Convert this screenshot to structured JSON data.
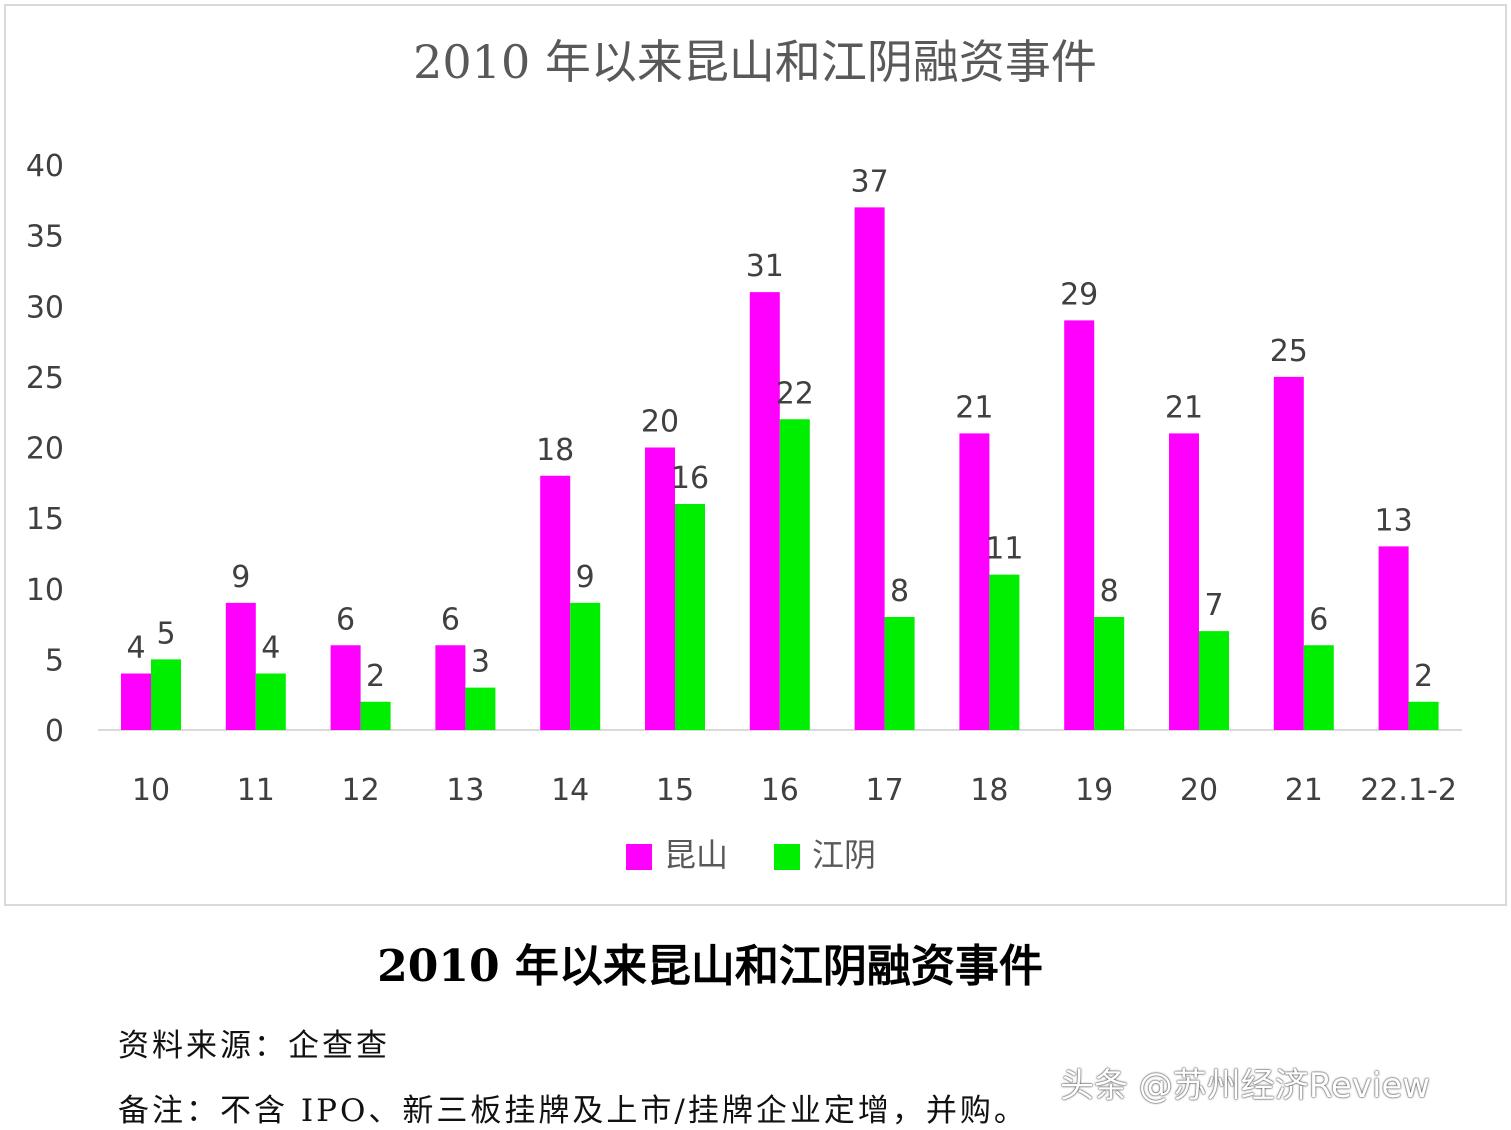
{
  "chart_data": {
    "type": "bar",
    "title": "2010 年以来昆山和江阴融资事件",
    "categories": [
      "10",
      "11",
      "12",
      "13",
      "14",
      "15",
      "16",
      "17",
      "18",
      "19",
      "20",
      "21",
      "22.1-2"
    ],
    "series": [
      {
        "name": "昆山",
        "color": "#ff00ff",
        "values": [
          4,
          9,
          6,
          6,
          18,
          20,
          31,
          37,
          21,
          29,
          21,
          25,
          13
        ]
      },
      {
        "name": "江阴",
        "color": "#00ee00",
        "values": [
          5,
          4,
          2,
          3,
          9,
          16,
          22,
          8,
          11,
          8,
          7,
          6,
          2
        ]
      }
    ],
    "ylim": [
      0,
      40
    ],
    "yticks": [
      0,
      5,
      10,
      15,
      20,
      25,
      30,
      35,
      40
    ],
    "grid": false,
    "legend": "bottom",
    "data_labels": true
  },
  "caption": "2010 年以来昆山和江阴融资事件",
  "source": "资料来源：企查查",
  "note": "备注：不含 IPO、新三板挂牌及上市/挂牌企业定增，并购。",
  "watermark": "头条 @苏州经济Review"
}
